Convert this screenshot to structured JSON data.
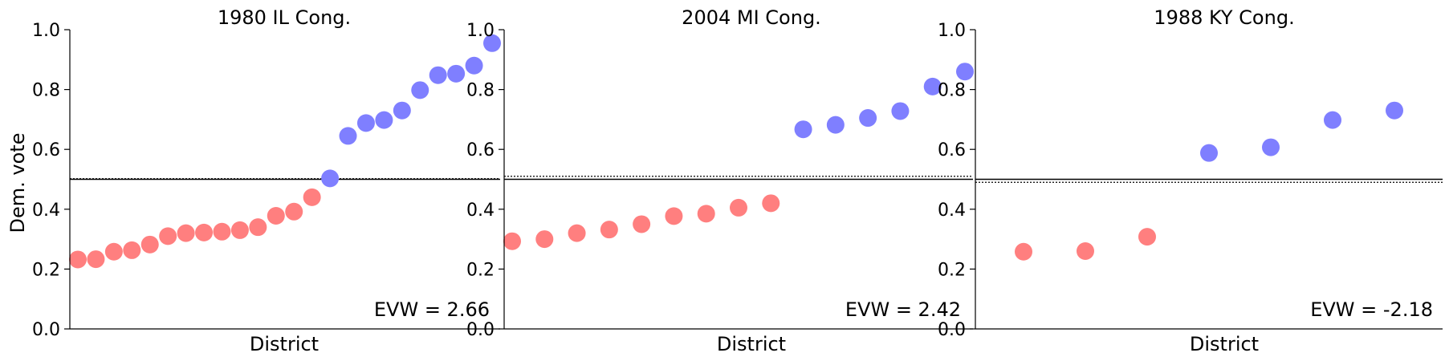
{
  "chart_data": [
    {
      "type": "scatter",
      "title": "1980 IL Cong.",
      "xlabel": "District",
      "ylabel": "Dem. vote",
      "ylim": [
        0,
        1
      ],
      "yticks": [
        "0.0",
        "0.2",
        "0.4",
        "0.6",
        "0.8",
        "1.0"
      ],
      "reference_solid": 0.5,
      "reference_dotted": 0.502,
      "annotation": "EVW = 2.66",
      "colors": {
        "rep": "#ff7f7f",
        "dem": "#7f7fff"
      },
      "points": [
        {
          "y": 0.232,
          "party": "rep"
        },
        {
          "y": 0.233,
          "party": "rep"
        },
        {
          "y": 0.258,
          "party": "rep"
        },
        {
          "y": 0.263,
          "party": "rep"
        },
        {
          "y": 0.282,
          "party": "rep"
        },
        {
          "y": 0.31,
          "party": "rep"
        },
        {
          "y": 0.32,
          "party": "rep"
        },
        {
          "y": 0.322,
          "party": "rep"
        },
        {
          "y": 0.325,
          "party": "rep"
        },
        {
          "y": 0.33,
          "party": "rep"
        },
        {
          "y": 0.34,
          "party": "rep"
        },
        {
          "y": 0.378,
          "party": "rep"
        },
        {
          "y": 0.392,
          "party": "rep"
        },
        {
          "y": 0.44,
          "party": "rep"
        },
        {
          "y": 0.503,
          "party": "dem"
        },
        {
          "y": 0.645,
          "party": "dem"
        },
        {
          "y": 0.688,
          "party": "dem"
        },
        {
          "y": 0.698,
          "party": "dem"
        },
        {
          "y": 0.73,
          "party": "dem"
        },
        {
          "y": 0.798,
          "party": "dem"
        },
        {
          "y": 0.848,
          "party": "dem"
        },
        {
          "y": 0.853,
          "party": "dem"
        },
        {
          "y": 0.88,
          "party": "dem"
        },
        {
          "y": 0.955,
          "party": "dem"
        }
      ]
    },
    {
      "type": "scatter",
      "title": "2004 MI Cong.",
      "xlabel": "District",
      "ylabel": "",
      "ylim": [
        0,
        1
      ],
      "yticks": [
        "0.0",
        "0.2",
        "0.4",
        "0.6",
        "0.8",
        "1.0"
      ],
      "reference_solid": 0.5,
      "reference_dotted": 0.51,
      "annotation": "EVW = 2.42",
      "colors": {
        "rep": "#ff7f7f",
        "dem": "#7f7fff"
      },
      "points": [
        {
          "y": 0.293,
          "party": "rep"
        },
        {
          "y": 0.3,
          "party": "rep"
        },
        {
          "y": 0.32,
          "party": "rep"
        },
        {
          "y": 0.332,
          "party": "rep"
        },
        {
          "y": 0.35,
          "party": "rep"
        },
        {
          "y": 0.377,
          "party": "rep"
        },
        {
          "y": 0.385,
          "party": "rep"
        },
        {
          "y": 0.405,
          "party": "rep"
        },
        {
          "y": 0.42,
          "party": "rep"
        },
        {
          "y": 0.667,
          "party": "dem"
        },
        {
          "y": 0.682,
          "party": "dem"
        },
        {
          "y": 0.705,
          "party": "dem"
        },
        {
          "y": 0.728,
          "party": "dem"
        },
        {
          "y": 0.81,
          "party": "dem"
        },
        {
          "y": 0.86,
          "party": "dem"
        }
      ]
    },
    {
      "type": "scatter",
      "title": "1988 KY Cong.",
      "xlabel": "District",
      "ylabel": "",
      "ylim": [
        0,
        1
      ],
      "yticks": [
        "0.0",
        "0.2",
        "0.4",
        "0.6",
        "0.8",
        "1.0"
      ],
      "reference_solid": 0.5,
      "reference_dotted": 0.49,
      "annotation": "EVW = -2.18",
      "colors": {
        "rep": "#ff7f7f",
        "dem": "#7f7fff"
      },
      "points": [
        {
          "y": 0.258,
          "party": "rep"
        },
        {
          "y": 0.26,
          "party": "rep"
        },
        {
          "y": 0.308,
          "party": "rep"
        },
        {
          "y": 0.588,
          "party": "dem"
        },
        {
          "y": 0.607,
          "party": "dem"
        },
        {
          "y": 0.698,
          "party": "dem"
        },
        {
          "y": 0.73,
          "party": "dem"
        }
      ]
    }
  ]
}
